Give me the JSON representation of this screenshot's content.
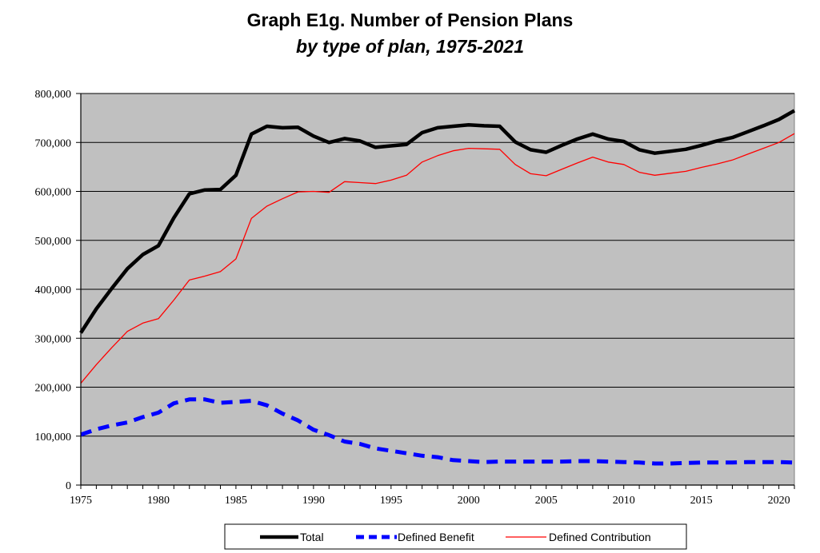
{
  "chart_data": {
    "type": "line",
    "title": "Graph E1g. Number of Pension Plans",
    "subtitle": "by type of plan, 1975-2021",
    "xlabel": "",
    "ylabel": "",
    "xlim": [
      1975,
      2021
    ],
    "ylim": [
      0,
      800000
    ],
    "x_ticks": [
      "1975",
      "1980",
      "1985",
      "1990",
      "1995",
      "2000",
      "2005",
      "2010",
      "2015",
      "2020"
    ],
    "y_ticks": [
      "0",
      "100,000",
      "200,000",
      "300,000",
      "400,000",
      "500,000",
      "600,000",
      "700,000",
      "800,000"
    ],
    "grid": "horizontal",
    "legend_position": "bottom",
    "background_color": "#c0c0c0",
    "x": [
      1975,
      1976,
      1977,
      1978,
      1979,
      1980,
      1981,
      1982,
      1983,
      1984,
      1985,
      1986,
      1987,
      1988,
      1989,
      1990,
      1991,
      1992,
      1993,
      1994,
      1995,
      1996,
      1997,
      1998,
      1999,
      2000,
      2001,
      2002,
      2003,
      2004,
      2005,
      2006,
      2007,
      2008,
      2009,
      2010,
      2011,
      2012,
      2013,
      2014,
      2015,
      2016,
      2017,
      2018,
      2019,
      2020,
      2021
    ],
    "series": [
      {
        "name": "Total",
        "color": "#000000",
        "style": "solid-thick",
        "values": [
          311000,
          360000,
          402000,
          442000,
          471000,
          489000,
          546000,
          595000,
          603000,
          604000,
          633000,
          717000,
          733000,
          730000,
          731000,
          713000,
          700000,
          708000,
          703000,
          690000,
          693000,
          696000,
          720000,
          730000,
          733000,
          736000,
          734000,
          733000,
          701000,
          685000,
          680000,
          694000,
          707000,
          717000,
          707000,
          702000,
          685000,
          678000,
          682000,
          686000,
          694000,
          703000,
          710000,
          722000,
          734000,
          747000,
          765000
        ]
      },
      {
        "name": "Defined Benefit",
        "color": "#0000ff",
        "style": "dashed-thick",
        "values": [
          103000,
          114000,
          122000,
          128000,
          139000,
          148000,
          167000,
          175000,
          175000,
          168000,
          170000,
          172000,
          163000,
          146000,
          132000,
          113000,
          102000,
          89000,
          84000,
          75000,
          70000,
          65000,
          60000,
          57000,
          51000,
          49000,
          47000,
          48000,
          48000,
          48000,
          48000,
          48000,
          49000,
          49000,
          48000,
          47000,
          46000,
          44000,
          44000,
          45000,
          46000,
          46000,
          46000,
          47000,
          47000,
          47000,
          46000
        ]
      },
      {
        "name": "Defined Contribution",
        "color": "#ff0000",
        "style": "solid-thin",
        "values": [
          208000,
          246000,
          281000,
          314000,
          331000,
          340000,
          378000,
          419000,
          427000,
          436000,
          462000,
          545000,
          570000,
          585000,
          599000,
          600000,
          598000,
          620000,
          618000,
          616000,
          623000,
          633000,
          660000,
          673000,
          683000,
          688000,
          687000,
          686000,
          655000,
          636000,
          632000,
          645000,
          658000,
          670000,
          660000,
          655000,
          639000,
          633000,
          637000,
          641000,
          649000,
          656000,
          664000,
          676000,
          688000,
          700000,
          718000
        ]
      }
    ]
  }
}
